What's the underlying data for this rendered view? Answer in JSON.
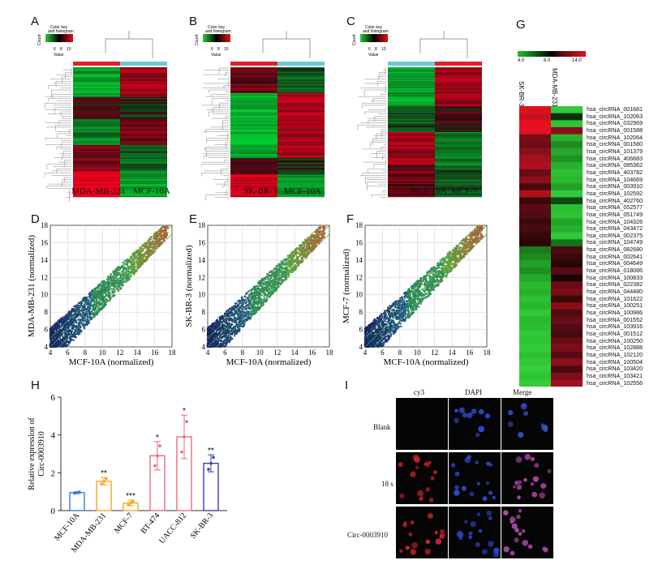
{
  "panels": {
    "A": "A",
    "B": "B",
    "C": "C",
    "D": "D",
    "E": "E",
    "F": "F",
    "G": "G",
    "H": "H",
    "I": "I"
  },
  "color_key": {
    "line1": "Color key",
    "line2": "and histogram",
    "ylabel": "Count",
    "xlabel": "Value",
    "ticks": [
      "6",
      "8",
      "10"
    ]
  },
  "heatmaps": {
    "A": {
      "left": "MDA-MB-231",
      "right": "MCF-10A"
    },
    "B": {
      "left": "SK-BR-3",
      "right": "MCF-10A"
    },
    "C": {
      "left": "MCF-10A",
      "right": "MCF-7"
    }
  },
  "scatter": {
    "D": {
      "ylabel": "MDA-MB-231 (normalized)",
      "xlabel": "MCF-10A (normalized)"
    },
    "E": {
      "ylabel": "SK-BR-3 (normalized)",
      "xlabel": "MCF-10A (normalized)"
    },
    "F": {
      "ylabel": "MCF-7 (normalized)",
      "xlabel": "MCF-10A (normalized)"
    },
    "ticks": [
      "4",
      "6",
      "8",
      "10",
      "12",
      "14",
      "16",
      "18"
    ]
  },
  "gkey": {
    "ticks": [
      "4.0",
      "8.0",
      "14.0"
    ],
    "cols": [
      "SK-BR-3",
      "MDA-MB-231"
    ]
  },
  "circ_rnas": [
    "hsa_circRNA_001681",
    "hsa_circRNA_102063",
    "hsa_circRNA_032969",
    "hsa_circRNA_001588",
    "hsa_circRNA_102064",
    "hsa_circRNA_001580",
    "hsa_circRNA_101379",
    "hsa_circRNA_406683",
    "hsa_circRNA_085362",
    "hsa_circRNA_403782",
    "hsa_circRNA_104669",
    "hsa_circRNA_003910",
    "hsa_circRNA_102592",
    "hsa_circRNA_402760",
    "hsa_circRNA_052577",
    "hsa_circRNA_051749",
    "hsa_circRNA_104326",
    "hsa_circRNA_043472",
    "hsa_circRNA_002375",
    "hsa_circRNA_104749",
    "hsa_circRNA_082680",
    "hsa_circRNA_002641",
    "hsa_circRNA_004649",
    "hsa_circRNA_018086",
    "hsa_circRNA_100833",
    "hsa_circRNA_022382",
    "hsa_circRNA_044480",
    "hsa_circRNA_101622",
    "hsa_circRNA_100251",
    "hsa_circRNA_100986",
    "hsa_circRNA_001552",
    "hsa_circRNA_103916",
    "hsa_circRNA_001512",
    "hsa_circRNA_100250",
    "hsa_circRNA_102888",
    "hsa_circRNA_102120",
    "hsa_circRNA_100504",
    "hsa_circRNA_103420",
    "hsa_circRNA_103421",
    "hsa_circRNA_102556"
  ],
  "g_colors": {
    "sk": [
      "#e0101c",
      "#c81020",
      "#e81020",
      "#e21020",
      "#7a0c18",
      "#6e0c18",
      "#8a1018",
      "#a01020",
      "#b01020",
      "#6a0a14",
      "#8e0e1c",
      "#4a0a10",
      "#b0101c",
      "#3a0808",
      "#5a0a14",
      "#500a14",
      "#3e0808",
      "#460a10",
      "#360808",
      "#2a0606",
      "#1a7a1c",
      "#1e8a20",
      "#22a028",
      "#1c901e",
      "#24a82a",
      "#2ab82e",
      "#26b02c",
      "#2cc032",
      "#28b82e",
      "#30c836",
      "#2ab82e",
      "#2cbe32",
      "#30c836",
      "#2ec434",
      "#32cc38",
      "#2cc032",
      "#30c836",
      "#34d03a",
      "#2ec434",
      "#32cc38"
    ],
    "mda": [
      "#34c83a",
      "#0a3010",
      "#2ec434",
      "#8a0e1a",
      "#2ab02e",
      "#1e8a22",
      "#26a82c",
      "#1c9420",
      "#28b02e",
      "#30c036",
      "#2ab82e",
      "#22a028",
      "#34c83a",
      "#0c4a14",
      "#2cbe32",
      "#2ec434",
      "#20a426",
      "#28b02e",
      "#30c836",
      "#16701a",
      "#4a0a10",
      "#3a0808",
      "#2a0606",
      "#5a0a14",
      "#1a0404",
      "#6a0c16",
      "#7a0e18",
      "#3e0808",
      "#8a0e18",
      "#500a12",
      "#6a0c16",
      "#520a14",
      "#460a10",
      "#6a0c16",
      "#7a0e18",
      "#5a0a14",
      "#8c0e1a",
      "#4a0a10",
      "#7e0e18",
      "#a01020"
    ]
  },
  "chart_data": {
    "type": "bar",
    "categories": [
      "MCF-10A",
      "MDA-MB-231",
      "MCF-7",
      "BT-474",
      "UACC-812",
      "SK-BR-3"
    ],
    "values": [
      0.95,
      1.55,
      0.4,
      2.9,
      3.9,
      2.5
    ],
    "errors": [
      0.05,
      0.2,
      0.15,
      0.75,
      1.15,
      0.45
    ],
    "significance": [
      "",
      "**",
      "***",
      "*",
      "*",
      "**"
    ],
    "colors": [
      "#3a7bd5",
      "#f5a623",
      "#f5a623",
      "#e86b7a",
      "#e86b7a",
      "#3b3fb0"
    ],
    "ylabel": "Relative expression of Circ-0003910",
    "ylim": [
      0,
      6
    ],
    "yticks": [
      "0",
      "2",
      "4",
      "6"
    ]
  },
  "microscopy": {
    "cols": [
      "cy3",
      "DAPI",
      "Merge"
    ],
    "rows": [
      "Blank",
      "18 s",
      "Circ-0003910"
    ]
  }
}
